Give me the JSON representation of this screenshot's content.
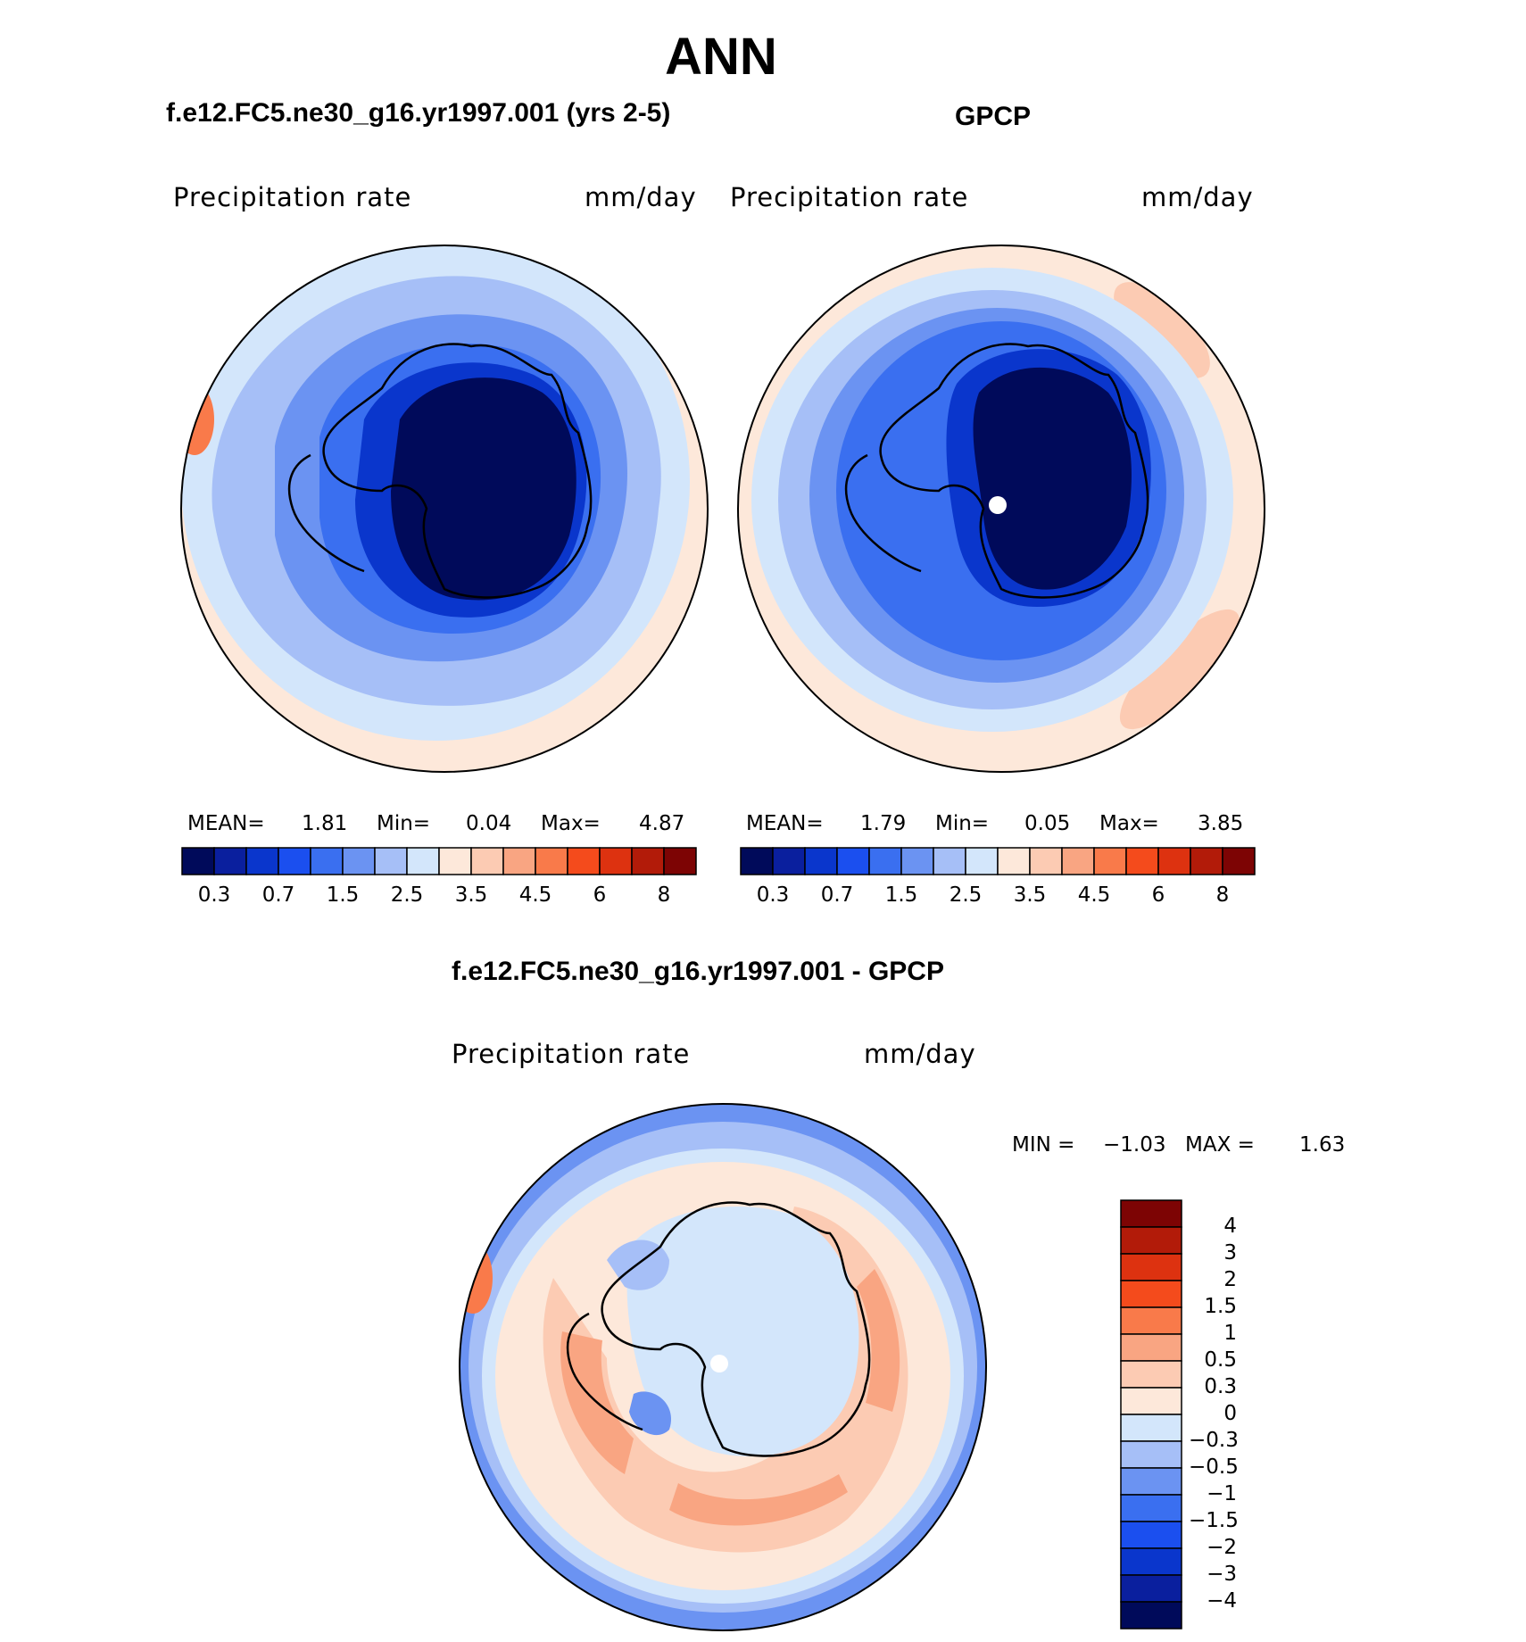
{
  "title": "ANN",
  "colors": {
    "abs_levels": [
      "#000a5a",
      "#0a1f9e",
      "#0a36cc",
      "#1b4fef",
      "#3a6ff0",
      "#6b93f2",
      "#a6bff7",
      "#d3e6fb",
      "#fde8da",
      "#fccbb3",
      "#f9a582",
      "#f97a4a",
      "#f44b1c",
      "#dd3210",
      "#b21b09",
      "#7d0404"
    ],
    "diff_levels": [
      "#000a5a",
      "#0a1f9e",
      "#0a36cc",
      "#1b4fef",
      "#3a6ff0",
      "#6b93f2",
      "#a6bff7",
      "#d3e6fb",
      "#fde8da",
      "#fccbb3",
      "#f9a582",
      "#f97a4a",
      "#f44b1c",
      "#dd3210",
      "#b21b09",
      "#7d0404"
    ]
  },
  "chart_data": [
    {
      "type": "heatmap",
      "title": "f.e12.FC5.ne30_g16.yr1997.001 (yrs 2-5)",
      "left_label": "Precipitation rate",
      "right_label": "mm/day",
      "projection": "south-polar-stereographic",
      "stats": {
        "mean_label": "MEAN=",
        "mean": "1.81",
        "min_label": "Min=",
        "min": "0.04",
        "max_label": "Max=",
        "max": "4.87"
      },
      "colorbar_ticks": [
        "0.3",
        "0.7",
        "1.5",
        "2.5",
        "3.5",
        "4.5",
        "6",
        "8"
      ],
      "contour_levels": [
        0.2,
        0.3,
        0.5,
        0.7,
        1,
        1.5,
        2,
        2.5,
        3,
        3.5,
        4,
        4.5,
        5,
        6,
        7,
        8
      ]
    },
    {
      "type": "heatmap",
      "title": "GPCP",
      "left_label": "Precipitation rate",
      "right_label": "mm/day",
      "projection": "south-polar-stereographic",
      "stats": {
        "mean_label": "MEAN=",
        "mean": "1.79",
        "min_label": "Min=",
        "min": "0.05",
        "max_label": "Max=",
        "max": "3.85"
      },
      "colorbar_ticks": [
        "0.3",
        "0.7",
        "1.5",
        "2.5",
        "3.5",
        "4.5",
        "6",
        "8"
      ],
      "contour_levels": [
        0.2,
        0.3,
        0.5,
        0.7,
        1,
        1.5,
        2,
        2.5,
        3,
        3.5,
        4,
        4.5,
        5,
        6,
        7,
        8
      ]
    },
    {
      "type": "heatmap",
      "title": "f.e12.FC5.ne30_g16.yr1997.001 - GPCP",
      "left_label": "Precipitation rate",
      "right_label": "mm/day",
      "projection": "south-polar-stereographic",
      "stats": {
        "min_label": "MIN =",
        "min": "−1.03",
        "max_label": "MAX =",
        "max": "1.63"
      },
      "colorbar_ticks": [
        "4",
        "3",
        "2",
        "1.5",
        "1",
        "0.5",
        "0.3",
        "0",
        "−0.3",
        "−0.5",
        "−1",
        "−1.5",
        "−2",
        "−3",
        "−4"
      ],
      "contour_levels": [
        -5,
        -4,
        -3,
        -2,
        -1.5,
        -1,
        -0.5,
        -0.3,
        0,
        0.3,
        0.5,
        1,
        1.5,
        2,
        3,
        4,
        5
      ]
    }
  ]
}
